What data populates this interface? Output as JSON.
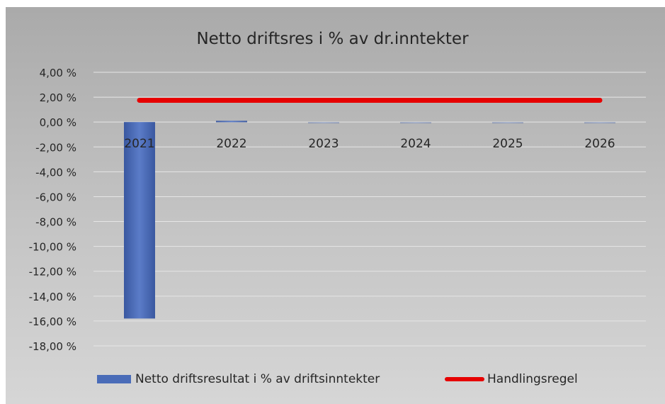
{
  "chart_data": {
    "type": "bar",
    "title": "Netto driftsres i % av dr.inntekter",
    "categories": [
      "2021",
      "2022",
      "2023",
      "2024",
      "2025",
      "2026"
    ],
    "series": [
      {
        "name": "Netto driftsresultat i % av driftsinntekter",
        "kind": "bar",
        "color": "#4a6cb8",
        "values": [
          -15.8,
          0.1,
          0.0,
          0.0,
          0.0,
          0.0
        ]
      },
      {
        "name": "Handlingsregel",
        "kind": "line",
        "color": "#e60000",
        "values": [
          1.75,
          1.75,
          1.75,
          1.75,
          1.75,
          1.75
        ]
      }
    ],
    "ylim": [
      -18,
      4
    ],
    "yticks": [
      4,
      2,
      0,
      -2,
      -4,
      -6,
      -8,
      -10,
      -12,
      -14,
      -16,
      -18
    ],
    "ytick_labels": [
      "4,00 %",
      "2,00 %",
      "0,00 %",
      "-2,00 %",
      "-4,00 %",
      "-6,00 %",
      "-8,00 %",
      "-10,00 %",
      "-12,00 %",
      "-14,00 %",
      "-16,00 %",
      "-18,00 %"
    ],
    "grid": true,
    "legend_position": "bottom"
  }
}
